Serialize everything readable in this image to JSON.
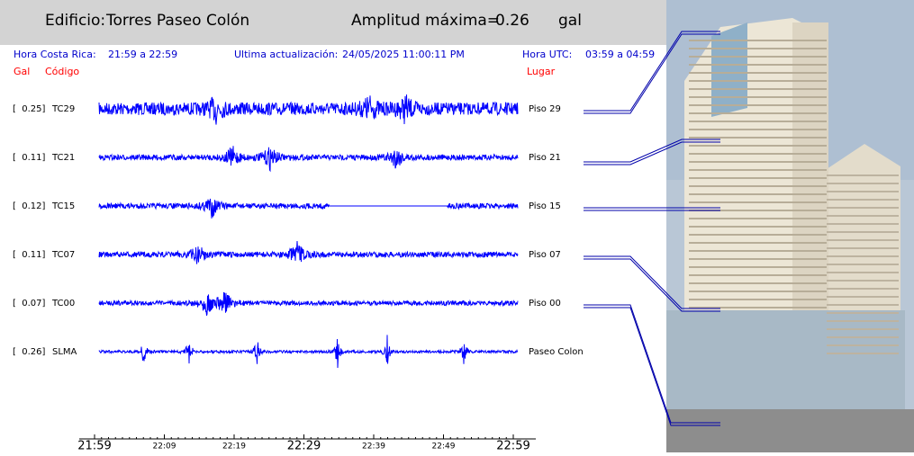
{
  "header": {
    "building_label": "Edificio:",
    "building": "Torres Paseo Colón",
    "amplitude_label": "Amplitud máxima=",
    "amplitude": "0.26",
    "unit": "gal"
  },
  "info": {
    "local_label": "Hora Costa Rica:",
    "local_range": "21:59 a 22:59",
    "update_label": "Ultima actualización:",
    "update": "24/05/2025 11:00:11 PM",
    "utc_label": "Hora UTC:",
    "utc_range": "03:59 a 04:59"
  },
  "columns": {
    "gal": "Gal",
    "code": "Código",
    "place": "Lugar"
  },
  "traces": [
    {
      "amplitude": "[  0.25]",
      "code": "TC29",
      "place": "Piso 29"
    },
    {
      "amplitude": "[  0.11]",
      "code": "TC21",
      "place": "Piso 21"
    },
    {
      "amplitude": "[  0.12]",
      "code": "TC15",
      "place": "Piso 15"
    },
    {
      "amplitude": "[  0.11]",
      "code": "TC07",
      "place": "Piso 07"
    },
    {
      "amplitude": "[  0.07]",
      "code": "TC00",
      "place": "Piso 00"
    },
    {
      "amplitude": "[  0.26]",
      "code": "SLMA",
      "place": "Paseo Colon"
    }
  ],
  "time_axis": [
    "21:59",
    "22:09",
    "22:19",
    "22:29",
    "22:39",
    "22:49",
    "22:59"
  ]
}
